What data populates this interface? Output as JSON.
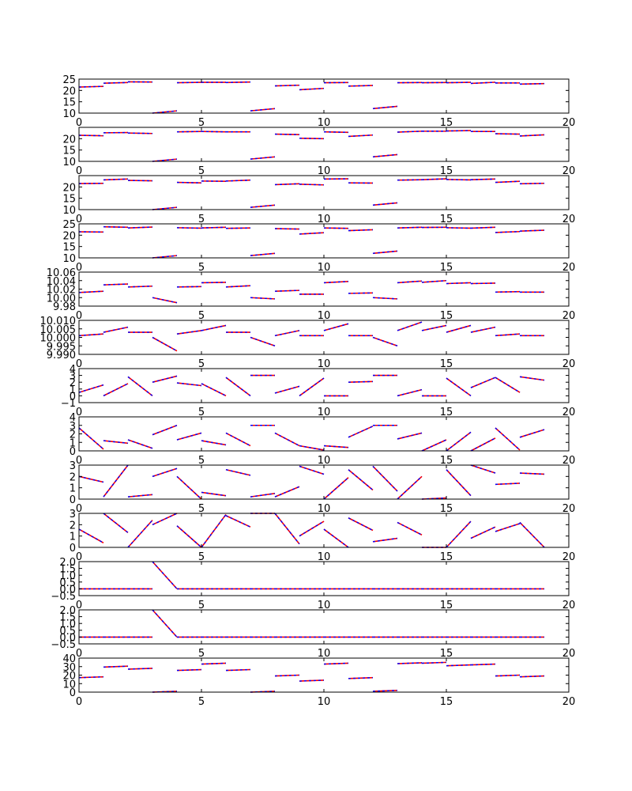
{
  "colors": {
    "reference": "#ff0000",
    "comparison": "#0000ff",
    "axes": "#000000",
    "background": "#ffffff"
  },
  "chart_data": [
    {
      "type": "line",
      "xlim": [
        0,
        20
      ],
      "ylim": [
        10,
        25
      ],
      "xticks": [
        "0",
        "5",
        "10",
        "15",
        "20"
      ],
      "yticks": [
        "10",
        "15",
        "20",
        "25"
      ],
      "series": [
        {
          "values": [
            21.5,
            23.2,
            23.8,
            10,
            23.4,
            23.6,
            23.5,
            11,
            22,
            20.3,
            23.4,
            21.9,
            12,
            23.4,
            23.4,
            23.4,
            23.1,
            23.3,
            22.8,
            23
          ]
        },
        {
          "values": [
            21.8,
            23.5,
            23.7,
            11,
            23.6,
            23.6,
            23.7,
            12,
            22.3,
            20.9,
            23.5,
            22.2,
            13,
            23.5,
            23.5,
            23.6,
            23.6,
            23.3,
            23,
            23.3
          ]
        }
      ]
    },
    {
      "type": "line",
      "xlim": [
        0,
        20
      ],
      "ylim": [
        10,
        25
      ],
      "xticks": [
        "0",
        "5",
        "10",
        "15",
        "20"
      ],
      "yticks": [
        "10",
        "15",
        "20"
      ],
      "series": [
        {
          "values": [
            21.5,
            22.6,
            22.5,
            10,
            23,
            23.2,
            23,
            11,
            22,
            20.2,
            23,
            21,
            12,
            22.9,
            23.3,
            23.4,
            23.2,
            22.2,
            21.2,
            23
          ]
        },
        {
          "values": [
            21.3,
            22.7,
            22.3,
            11,
            23.2,
            23,
            23,
            12,
            21.8,
            20,
            22.8,
            21.6,
            13,
            23.3,
            23.3,
            23.6,
            23.2,
            22,
            21.7,
            23.8
          ]
        }
      ]
    },
    {
      "type": "line",
      "xlim": [
        0,
        20
      ],
      "ylim": [
        10,
        25
      ],
      "xticks": [
        "0",
        "5",
        "10",
        "15",
        "20"
      ],
      "yticks": [
        "10",
        "15",
        "20"
      ],
      "series": [
        {
          "values": [
            21.5,
            23.1,
            22.9,
            10,
            22,
            22.6,
            22.6,
            11,
            21,
            21.2,
            23.5,
            21.8,
            12,
            23,
            23.2,
            23.3,
            23.2,
            22,
            21.4,
            22.9
          ]
        },
        {
          "values": [
            21.6,
            23.5,
            22.7,
            11,
            21.8,
            22.5,
            23,
            12,
            21.4,
            20.9,
            23.6,
            21.7,
            13,
            23.2,
            23.6,
            23.1,
            23.5,
            22.5,
            21.6,
            23.5
          ]
        }
      ]
    },
    {
      "type": "line",
      "xlim": [
        0,
        20
      ],
      "ylim": [
        10,
        25
      ],
      "xticks": [
        "0",
        "5",
        "10",
        "15",
        "20"
      ],
      "yticks": [
        "10",
        "15",
        "20",
        "25"
      ],
      "series": [
        {
          "values": [
            21.5,
            23.7,
            23.2,
            10,
            23.3,
            23.2,
            23,
            11,
            22.9,
            20.5,
            23.2,
            22,
            12,
            23.2,
            23.4,
            23.3,
            23.1,
            21.2,
            21.8,
            23.5
          ]
        },
        {
          "values": [
            21.4,
            23.5,
            23.6,
            11,
            23.1,
            23.5,
            23.2,
            12,
            22.7,
            21.1,
            23,
            22.4,
            13,
            23.5,
            23.5,
            23.1,
            23.5,
            21.6,
            22.2,
            23.5
          ]
        }
      ]
    },
    {
      "type": "line",
      "xlim": [
        0,
        20
      ],
      "ylim": [
        9.98,
        10.06
      ],
      "xticks": [
        "0",
        "5",
        "10",
        "15",
        "20"
      ],
      "yticks": [
        "9.98",
        "10.00",
        "10.02",
        "10.04",
        "10.06"
      ],
      "series": [
        {
          "values": [
            10.012,
            10.03,
            10.025,
            10,
            10.025,
            10.035,
            10.025,
            10,
            10.015,
            10.008,
            10.035,
            10.01,
            10,
            10.035,
            10.036,
            10.033,
            10.033,
            10.013,
            10.013,
            10.027
          ]
        },
        {
          "values": [
            10.015,
            10.032,
            10.027,
            9.988,
            10.026,
            10.036,
            10.028,
            9.997,
            10.017,
            10.008,
            10.038,
            10.011,
            9.997,
            10.039,
            10.04,
            10.035,
            10.034,
            10.014,
            10.013,
            10.028
          ]
        }
      ]
    },
    {
      "type": "line",
      "xlim": [
        0,
        20
      ],
      "ylim": [
        9.99,
        10.01
      ],
      "xticks": [
        "0",
        "5",
        "10",
        "15",
        "20"
      ],
      "yticks": [
        "9.990",
        "9.995",
        "10.000",
        "10.005",
        "10.010"
      ],
      "series": [
        {
          "values": [
            10.001,
            10.003,
            10.003,
            10,
            10.002,
            10.004,
            10.003,
            10,
            10.001,
            10.001,
            10.004,
            10.001,
            10,
            10.004,
            10.004,
            10.003,
            10.003,
            10.001,
            10.001,
            10.002
          ]
        },
        {
          "values": [
            10.002,
            10.006,
            10.003,
            9.992,
            10.004,
            10.007,
            10.003,
            9.995,
            10.004,
            10.001,
            10.008,
            10.001,
            9.995,
            10.009,
            10.007,
            10.007,
            10.006,
            10.002,
            10.001,
            10.003
          ]
        }
      ]
    },
    {
      "type": "line",
      "xlim": [
        0,
        20
      ],
      "ylim": [
        -1,
        4
      ],
      "xticks": [
        "0",
        "5",
        "10",
        "15",
        "20"
      ],
      "yticks": [
        "−1",
        "0",
        "1",
        "2",
        "3",
        "4"
      ],
      "series": [
        {
          "values": [
            0.5,
            0,
            2.8,
            2,
            1.9,
            1.8,
            2.7,
            3,
            0.4,
            0,
            0,
            2,
            3,
            0,
            0,
            2.6,
            1.2,
            2.7,
            2.8,
            2
          ]
        },
        {
          "values": [
            1.6,
            1.8,
            0,
            2.9,
            1.5,
            0,
            0,
            3,
            1.4,
            2.6,
            0,
            2.1,
            3,
            0.9,
            0,
            0,
            2.7,
            0.5,
            2.3,
            1.9
          ]
        }
      ]
    },
    {
      "type": "line",
      "xlim": [
        0,
        20
      ],
      "ylim": [
        0,
        4
      ],
      "xticks": [
        "0",
        "5",
        "10",
        "15",
        "20"
      ],
      "yticks": [
        "0",
        "1",
        "2",
        "3",
        "4"
      ],
      "series": [
        {
          "values": [
            2.7,
            1.2,
            1.3,
            1.9,
            1.3,
            1.2,
            2.1,
            3,
            2.1,
            0.6,
            0.6,
            1.6,
            3,
            1.4,
            0,
            0,
            0,
            2.7,
            1.6,
            2.9
          ]
        },
        {
          "values": [
            0.2,
            0.9,
            0.3,
            3,
            2.1,
            0.7,
            0.6,
            3,
            0.6,
            0.1,
            0.4,
            2.9,
            3,
            2.1,
            1.3,
            2.2,
            1.5,
            0.1,
            2.5,
            2.8
          ]
        }
      ]
    },
    {
      "type": "line",
      "xlim": [
        0,
        20
      ],
      "ylim": [
        0,
        3
      ],
      "xticks": [
        "0",
        "5",
        "10",
        "15",
        "20"
      ],
      "yticks": [
        "0",
        "1",
        "2",
        "3"
      ],
      "series": [
        {
          "values": [
            2,
            0.2,
            0.2,
            2,
            2,
            0.6,
            2.6,
            0.2,
            0.2,
            2.9,
            0,
            2.6,
            2.9,
            0,
            0,
            2.6,
            3,
            1.3,
            2.3,
            2.8
          ]
        },
        {
          "values": [
            1.5,
            3,
            0.4,
            2.7,
            0,
            0.3,
            2.1,
            0.5,
            1.1,
            2.2,
            1.9,
            0.8,
            0.7,
            2,
            0.1,
            0.3,
            2.3,
            1.4,
            2.2,
            2.2
          ]
        }
      ]
    },
    {
      "type": "line",
      "xlim": [
        0,
        20
      ],
      "ylim": [
        0,
        3
      ],
      "xticks": [
        "0",
        "5",
        "10",
        "15",
        "20"
      ],
      "yticks": [
        "0",
        "1",
        "2",
        "3"
      ],
      "series": [
        {
          "values": [
            1.6,
            3,
            0,
            2,
            1.9,
            0,
            2.8,
            3,
            3,
            1,
            1.6,
            2.6,
            0.5,
            2.2,
            0,
            0,
            0.8,
            1.4,
            2.2,
            3
          ]
        },
        {
          "values": [
            0.4,
            1.3,
            2.4,
            3,
            0,
            2.9,
            1.8,
            3,
            0.3,
            2.3,
            0,
            1.5,
            0.8,
            1.1,
            0,
            2.3,
            1.8,
            2.1,
            0,
            3
          ]
        }
      ]
    },
    {
      "type": "line",
      "xlim": [
        0,
        20
      ],
      "ylim": [
        -0.5,
        2
      ],
      "xticks": [
        "0",
        "5",
        "10",
        "15",
        "20"
      ],
      "yticks": [
        "−0.5",
        "0.0",
        "0.5",
        "1.0",
        "1.5",
        "2.0"
      ],
      "series": [
        {
          "values": [
            0,
            0,
            0,
            2,
            0,
            0,
            0,
            0,
            0,
            0,
            0,
            0,
            0,
            0,
            0,
            0,
            0,
            0,
            0,
            0
          ]
        },
        {
          "values": [
            0,
            0,
            0,
            0,
            0,
            0,
            0,
            0,
            0,
            0,
            0,
            0,
            0,
            0,
            0,
            0,
            0,
            0,
            0,
            0
          ]
        }
      ]
    },
    {
      "type": "line",
      "xlim": [
        0,
        20
      ],
      "ylim": [
        -0.5,
        2
      ],
      "xticks": [
        "0",
        "5",
        "10",
        "15",
        "20"
      ],
      "yticks": [
        "−0.5",
        "0.0",
        "0.5",
        "1.0",
        "1.5",
        "2.0"
      ],
      "series": [
        {
          "values": [
            0,
            0,
            0,
            2,
            0,
            0,
            0,
            0,
            0,
            0,
            0,
            0,
            0,
            0,
            0,
            0,
            0,
            0,
            0,
            0
          ]
        },
        {
          "values": [
            0,
            0,
            0,
            0,
            0,
            0,
            0,
            0,
            0,
            0,
            0,
            0,
            0,
            0,
            0,
            0,
            0,
            0,
            0,
            0
          ]
        }
      ]
    },
    {
      "type": "line",
      "xlim": [
        0,
        20
      ],
      "ylim": [
        0,
        40
      ],
      "xticks": [
        "0",
        "5",
        "10",
        "15",
        "20"
      ],
      "yticks": [
        "0",
        "10",
        "20",
        "30",
        "40"
      ],
      "series": [
        {
          "values": [
            17,
            29.5,
            27,
            0,
            25.5,
            33,
            25.5,
            0,
            19,
            13,
            33,
            16,
            1,
            33.5,
            34,
            31,
            32,
            19,
            18,
            26
          ]
        },
        {
          "values": [
            18,
            30.5,
            28,
            1,
            26.5,
            34,
            26.5,
            1,
            20,
            14,
            34,
            17,
            2,
            34.5,
            35,
            32,
            33,
            20,
            19,
            27
          ]
        }
      ]
    }
  ]
}
